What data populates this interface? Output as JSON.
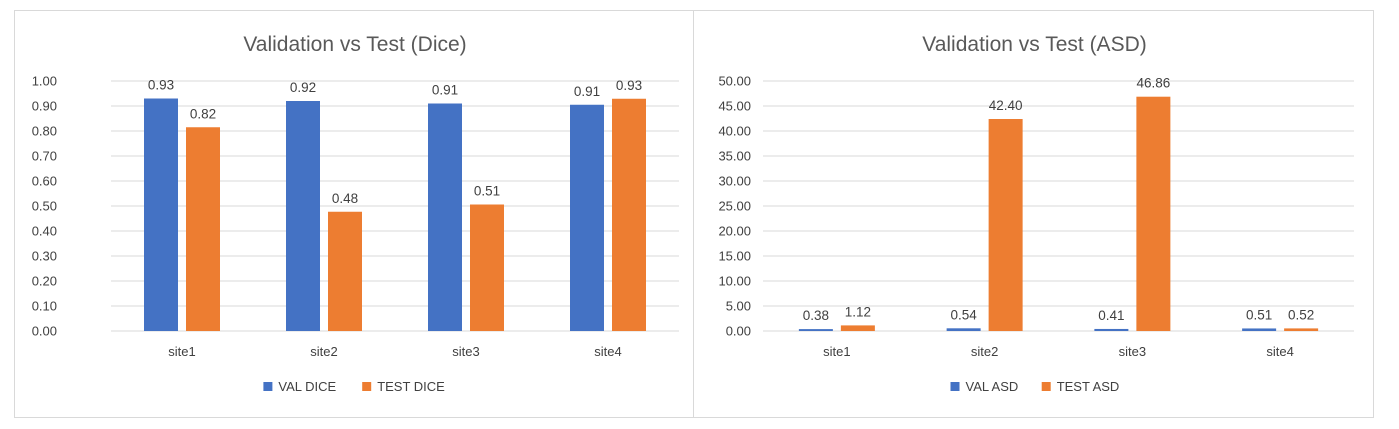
{
  "chart_data": [
    {
      "type": "bar",
      "title": "Validation vs Test (Dice)",
      "categories": [
        "site1",
        "site2",
        "site3",
        "site4"
      ],
      "series": [
        {
          "name": "VAL DICE",
          "color": "#4472c4",
          "values": [
            0.93,
            0.92,
            0.91,
            0.905
          ],
          "labels": [
            "0.93",
            "0.92",
            "0.91",
            "0.91"
          ]
        },
        {
          "name": "TEST DICE",
          "color": "#ed7d31",
          "values": [
            0.815,
            0.477,
            0.506,
            0.929
          ],
          "labels": [
            "0.82",
            "0.48",
            "0.51",
            "0.93"
          ]
        }
      ],
      "ylim": [
        0,
        1
      ],
      "yticks": [
        "0.00",
        "0.10",
        "0.20",
        "0.30",
        "0.40",
        "0.50",
        "0.60",
        "0.70",
        "0.80",
        "0.90",
        "1.00"
      ],
      "grid": true,
      "legend_position": "bottom"
    },
    {
      "type": "bar",
      "title": "Validation vs Test (ASD)",
      "categories": [
        "site1",
        "site2",
        "site3",
        "site4"
      ],
      "series": [
        {
          "name": "VAL ASD",
          "color": "#4472c4",
          "values": [
            0.38,
            0.54,
            0.41,
            0.51
          ],
          "labels": [
            "0.38",
            "0.54",
            "0.41",
            "0.51"
          ]
        },
        {
          "name": "TEST ASD",
          "color": "#ed7d31",
          "values": [
            1.12,
            42.4,
            46.86,
            0.52
          ],
          "labels": [
            "1.12",
            "42.40",
            "46.86",
            "0.52"
          ]
        }
      ],
      "ylim": [
        0,
        50
      ],
      "yticks": [
        "0.00",
        "5.00",
        "10.00",
        "15.00",
        "20.00",
        "25.00",
        "30.00",
        "35.00",
        "40.00",
        "45.00",
        "50.00"
      ],
      "grid": true,
      "legend_position": "bottom"
    }
  ]
}
